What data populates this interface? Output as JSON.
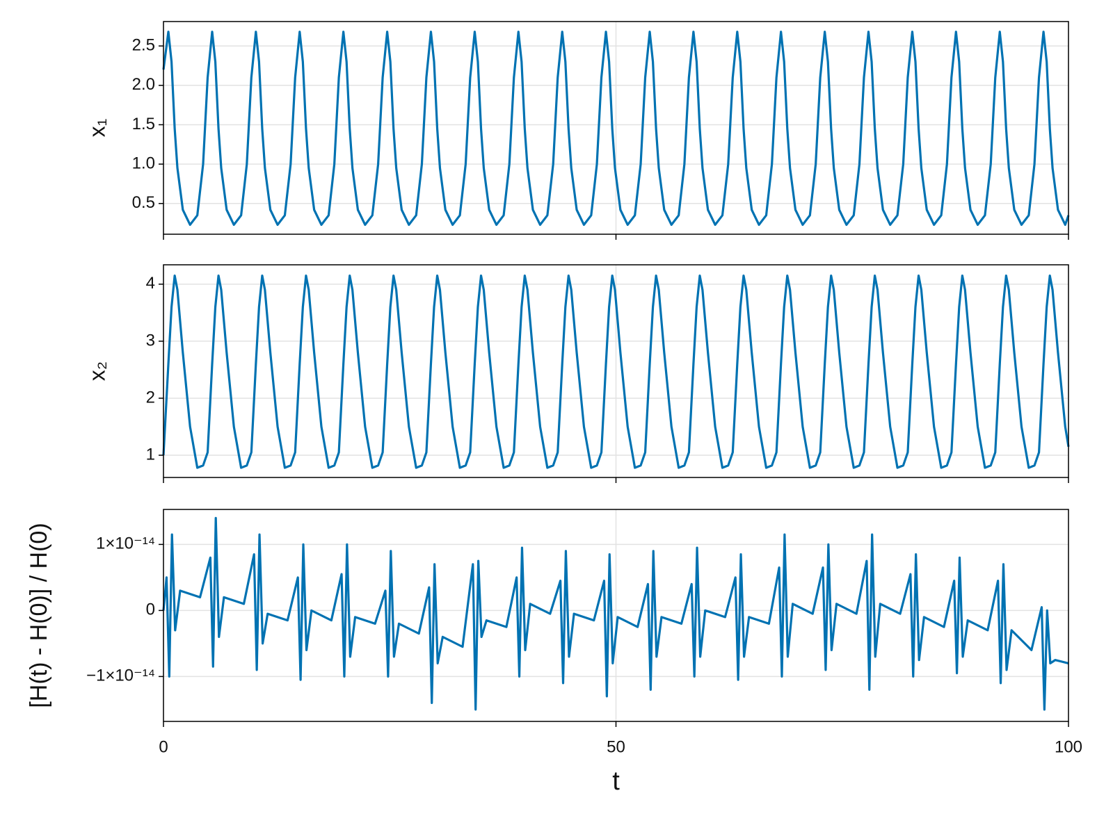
{
  "chart_data": [
    {
      "type": "line",
      "ylabel": "x₁",
      "color": "#0072b2",
      "grid": true,
      "xlim": [
        0,
        100
      ],
      "xticks": [
        0,
        50,
        100
      ],
      "ylim": [
        0.11,
        2.81
      ],
      "yticks": [
        0.5,
        {
          "value": 1,
          "label": "1.0"
        },
        1.5,
        {
          "value": 2,
          "label": "2.0"
        },
        2.5
      ],
      "x": [
        0,
        0.54,
        0.89,
        1.24,
        1.54,
        2.14,
        2.94,
        3.74,
        4.38,
        4.88,
        5.38,
        5.73,
        6.08,
        6.38,
        6.98,
        7.78,
        8.58,
        9.21,
        9.71,
        10.21,
        10.56,
        10.91,
        11.21,
        11.81,
        12.61,
        13.41,
        14.05,
        14.55,
        15.05,
        15.4,
        15.75,
        16.05,
        16.65,
        17.45,
        18.25,
        18.88,
        19.38,
        19.88,
        20.23,
        20.58,
        20.88,
        21.48,
        22.28,
        23.08,
        23.72,
        24.22,
        24.72,
        25.07,
        25.42,
        25.72,
        26.32,
        27.12,
        27.92,
        28.55,
        29.05,
        29.55,
        29.9,
        30.25,
        30.55,
        31.15,
        31.95,
        32.75,
        33.39,
        33.89,
        34.39,
        34.74,
        35.09,
        35.39,
        35.99,
        36.79,
        37.59,
        38.22,
        38.72,
        39.22,
        39.57,
        39.92,
        40.22,
        40.82,
        41.62,
        42.42,
        43.06,
        43.56,
        44.06,
        44.41,
        44.76,
        45.06,
        45.66,
        46.46,
        47.26,
        47.89,
        48.39,
        48.89,
        49.24,
        49.59,
        49.89,
        50.49,
        51.29,
        52.09,
        52.73,
        53.23,
        53.73,
        54.08,
        54.43,
        54.73,
        55.33,
        56.13,
        56.93,
        57.56,
        58.06,
        58.56,
        58.91,
        59.26,
        59.56,
        60.16,
        60.96,
        61.76,
        62.4,
        62.9,
        63.4,
        63.75,
        64.1,
        64.4,
        65,
        65.8,
        66.6,
        67.23,
        67.73,
        68.23,
        68.58,
        68.93,
        69.23,
        69.83,
        70.63,
        71.43,
        72.07,
        72.57,
        73.07,
        73.42,
        73.77,
        74.07,
        74.67,
        75.47,
        76.27,
        76.9,
        77.4,
        77.9,
        78.25,
        78.6,
        78.9,
        79.5,
        80.3,
        81.1,
        81.74,
        82.24,
        82.74,
        83.09,
        83.44,
        83.74,
        84.34,
        85.14,
        85.94,
        86.57,
        87.07,
        87.57,
        87.92,
        88.27,
        88.57,
        89.17,
        89.97,
        90.77,
        91.41,
        91.91,
        92.41,
        92.76,
        93.11,
        93.41,
        94.01,
        94.81,
        95.61,
        96.24,
        96.74,
        97.24,
        97.59,
        97.94,
        98.24,
        98.84,
        99.64,
        100
      ],
      "values": [
        2.2,
        2.68,
        2.3,
        1.45,
        0.95,
        0.42,
        0.23,
        0.35,
        1.0,
        2.1,
        2.68,
        2.3,
        1.45,
        0.95,
        0.42,
        0.23,
        0.35,
        1.0,
        2.1,
        2.68,
        2.3,
        1.45,
        0.95,
        0.42,
        0.23,
        0.35,
        1.0,
        2.1,
        2.68,
        2.3,
        1.45,
        0.95,
        0.42,
        0.23,
        0.35,
        1.0,
        2.1,
        2.68,
        2.3,
        1.45,
        0.95,
        0.42,
        0.23,
        0.35,
        1.0,
        2.1,
        2.68,
        2.3,
        1.45,
        0.95,
        0.42,
        0.23,
        0.35,
        1.0,
        2.1,
        2.68,
        2.3,
        1.45,
        0.95,
        0.42,
        0.23,
        0.35,
        1.0,
        2.1,
        2.68,
        2.3,
        1.45,
        0.95,
        0.42,
        0.23,
        0.35,
        1.0,
        2.1,
        2.68,
        2.3,
        1.45,
        0.95,
        0.42,
        0.23,
        0.35,
        1.0,
        2.1,
        2.68,
        2.3,
        1.45,
        0.95,
        0.42,
        0.23,
        0.35,
        1.0,
        2.1,
        2.68,
        2.3,
        1.45,
        0.95,
        0.42,
        0.23,
        0.35,
        1.0,
        2.1,
        2.68,
        2.3,
        1.45,
        0.95,
        0.42,
        0.23,
        0.35,
        1.0,
        2.1,
        2.68,
        2.3,
        1.45,
        0.95,
        0.42,
        0.23,
        0.35,
        1.0,
        2.1,
        2.68,
        2.3,
        1.45,
        0.95,
        0.42,
        0.23,
        0.35,
        1.0,
        2.1,
        2.68,
        2.3,
        1.45,
        0.95,
        0.42,
        0.23,
        0.35,
        1.0,
        2.1,
        2.68,
        2.3,
        1.45,
        0.95,
        0.42,
        0.23,
        0.35,
        1.0,
        2.1,
        2.68,
        2.3,
        1.45,
        0.95,
        0.42,
        0.23,
        0.35,
        1.0,
        2.1,
        2.68,
        2.3,
        1.45,
        0.95,
        0.42,
        0.23,
        0.35,
        1.0,
        2.1,
        2.68,
        2.3,
        1.45,
        0.95,
        0.42,
        0.23,
        0.35,
        1.0,
        2.1,
        2.68,
        2.3,
        1.45,
        0.95,
        0.42,
        0.23,
        0.35,
        1.0,
        2.1,
        2.68,
        2.3,
        1.45,
        0.95,
        0.42,
        0.23,
        0.35
      ]
    },
    {
      "type": "line",
      "ylabel": "x₂",
      "color": "#0072b2",
      "grid": true,
      "xlim": [
        0,
        100
      ],
      "xticks": [
        0,
        50,
        100
      ],
      "ylim": [
        0.61,
        4.34
      ],
      "yticks": [
        1,
        2,
        3,
        4
      ],
      "x": [
        0,
        0.54,
        0.89,
        1.24,
        1.54,
        2.14,
        2.94,
        3.74,
        4.38,
        4.88,
        5.38,
        5.73,
        6.08,
        6.38,
        6.98,
        7.78,
        8.58,
        9.21,
        9.71,
        10.21,
        10.56,
        10.91,
        11.21,
        11.81,
        12.61,
        13.41,
        14.05,
        14.55,
        15.05,
        15.4,
        15.75,
        16.05,
        16.65,
        17.45,
        18.25,
        18.88,
        19.38,
        19.88,
        20.23,
        20.58,
        20.88,
        21.48,
        22.28,
        23.08,
        23.72,
        24.22,
        24.72,
        25.07,
        25.42,
        25.72,
        26.32,
        27.12,
        27.92,
        28.55,
        29.05,
        29.55,
        29.9,
        30.25,
        30.55,
        31.15,
        31.95,
        32.75,
        33.39,
        33.89,
        34.39,
        34.74,
        35.09,
        35.39,
        35.99,
        36.79,
        37.59,
        38.22,
        38.72,
        39.22,
        39.57,
        39.92,
        40.22,
        40.82,
        41.62,
        42.42,
        43.06,
        43.56,
        44.06,
        44.41,
        44.76,
        45.06,
        45.66,
        46.46,
        47.26,
        47.89,
        48.39,
        48.89,
        49.24,
        49.59,
        49.89,
        50.49,
        51.29,
        52.09,
        52.73,
        53.23,
        53.73,
        54.08,
        54.43,
        54.73,
        55.33,
        56.13,
        56.93,
        57.56,
        58.06,
        58.56,
        58.91,
        59.26,
        59.56,
        60.16,
        60.96,
        61.76,
        62.4,
        62.9,
        63.4,
        63.75,
        64.1,
        64.4,
        65,
        65.8,
        66.6,
        67.23,
        67.73,
        68.23,
        68.58,
        68.93,
        69.23,
        69.83,
        70.63,
        71.43,
        72.07,
        72.57,
        73.07,
        73.42,
        73.77,
        74.07,
        74.67,
        75.47,
        76.27,
        76.9,
        77.4,
        77.9,
        78.25,
        78.6,
        78.9,
        79.5,
        80.3,
        81.1,
        81.74,
        82.24,
        82.74,
        83.09,
        83.44,
        83.74,
        84.34,
        85.14,
        85.94,
        86.57,
        87.07,
        87.57,
        87.92,
        88.27,
        88.57,
        89.17,
        89.97,
        90.77,
        91.41,
        91.91,
        92.41,
        92.76,
        93.11,
        93.41,
        94.01,
        94.81,
        95.61,
        96.24,
        96.74,
        97.24,
        97.59,
        97.94,
        98.24,
        98.84,
        99.64,
        100
      ],
      "values": [
        1.0,
        2.6,
        3.6,
        4.15,
        3.9,
        2.8,
        1.5,
        0.78,
        0.82,
        1.05,
        2.6,
        3.6,
        4.15,
        3.9,
        2.8,
        1.5,
        0.78,
        0.82,
        1.05,
        2.6,
        3.6,
        4.15,
        3.9,
        2.8,
        1.5,
        0.78,
        0.82,
        1.05,
        2.6,
        3.6,
        4.15,
        3.9,
        2.8,
        1.5,
        0.78,
        0.82,
        1.05,
        2.6,
        3.6,
        4.15,
        3.9,
        2.8,
        1.5,
        0.78,
        0.82,
        1.05,
        2.6,
        3.6,
        4.15,
        3.9,
        2.8,
        1.5,
        0.78,
        0.82,
        1.05,
        2.6,
        3.6,
        4.15,
        3.9,
        2.8,
        1.5,
        0.78,
        0.82,
        1.05,
        2.6,
        3.6,
        4.15,
        3.9,
        2.8,
        1.5,
        0.78,
        0.82,
        1.05,
        2.6,
        3.6,
        4.15,
        3.9,
        2.8,
        1.5,
        0.78,
        0.82,
        1.05,
        2.6,
        3.6,
        4.15,
        3.9,
        2.8,
        1.5,
        0.78,
        0.82,
        1.05,
        2.6,
        3.6,
        4.15,
        3.9,
        2.8,
        1.5,
        0.78,
        0.82,
        1.05,
        2.6,
        3.6,
        4.15,
        3.9,
        2.8,
        1.5,
        0.78,
        0.82,
        1.05,
        2.6,
        3.6,
        4.15,
        3.9,
        2.8,
        1.5,
        0.78,
        0.82,
        1.05,
        2.6,
        3.6,
        4.15,
        3.9,
        2.8,
        1.5,
        0.78,
        0.82,
        1.05,
        2.6,
        3.6,
        4.15,
        3.9,
        2.8,
        1.5,
        0.78,
        0.82,
        1.05,
        2.6,
        3.6,
        4.15,
        3.9,
        2.8,
        1.5,
        0.78,
        0.82,
        1.05,
        2.6,
        3.6,
        4.15,
        3.9,
        2.8,
        1.5,
        0.78,
        0.82,
        1.05,
        2.6,
        3.6,
        4.15,
        3.9,
        2.8,
        1.5,
        0.78,
        0.82,
        1.05,
        2.6,
        3.6,
        4.15,
        3.9,
        2.8,
        1.5,
        0.78,
        0.82,
        1.05,
        2.6,
        3.6,
        4.15,
        3.9,
        2.8,
        1.5,
        0.78,
        0.82,
        1.05,
        2.6,
        3.6,
        4.15,
        3.9,
        2.8,
        1.5,
        1.15
      ]
    },
    {
      "type": "line",
      "ylabel": "[H(t) - H(0)] / H(0)",
      "xlabel": "t",
      "color": "#0072b2",
      "grid": true,
      "xlim": [
        0,
        100
      ],
      "xticks": [
        0,
        50,
        100
      ],
      "ylim": [
        -1.68e-14,
        1.53e-14
      ],
      "yticks": [
        {
          "value": -1e-14,
          "label": "−1×10⁻¹⁴"
        },
        0,
        {
          "value": 1e-14,
          "label": "1×10⁻¹⁴"
        }
      ],
      "x": [
        0,
        0.34,
        0.64,
        0.94,
        1.29,
        1.84,
        4.04,
        5.18,
        5.48,
        5.78,
        6.13,
        6.68,
        8.88,
        10.01,
        10.31,
        10.61,
        10.96,
        11.51,
        13.71,
        14.85,
        15.15,
        15.45,
        15.8,
        16.35,
        18.55,
        19.68,
        19.98,
        20.28,
        20.63,
        21.18,
        23.38,
        24.52,
        24.82,
        25.12,
        25.47,
        26.02,
        28.22,
        29.35,
        29.65,
        29.95,
        30.3,
        30.85,
        33.05,
        34.19,
        34.49,
        34.79,
        35.14,
        35.69,
        37.89,
        39.02,
        39.32,
        39.62,
        39.97,
        40.52,
        42.72,
        43.86,
        44.16,
        44.46,
        44.81,
        45.36,
        47.56,
        48.69,
        48.99,
        49.29,
        49.64,
        50.19,
        52.39,
        53.53,
        53.83,
        54.13,
        54.48,
        55.03,
        57.23,
        58.36,
        58.66,
        58.96,
        59.31,
        59.86,
        62.06,
        63.2,
        63.5,
        63.8,
        64.15,
        64.7,
        66.9,
        68.03,
        68.33,
        68.63,
        68.98,
        69.53,
        71.73,
        72.87,
        73.17,
        73.47,
        73.82,
        74.37,
        76.57,
        77.7,
        78,
        78.3,
        78.65,
        79.2,
        81.4,
        82.54,
        82.84,
        83.14,
        83.49,
        84.04,
        86.24,
        87.37,
        87.67,
        87.97,
        88.32,
        88.87,
        91.07,
        92.21,
        92.51,
        92.81,
        93.16,
        93.71,
        95.91,
        97.04,
        97.34,
        97.64,
        97.99,
        98.54,
        100
      ],
      "values": [
        0,
        5e-15,
        -1e-14,
        1.15e-14,
        -3e-15,
        3e-15,
        2e-15,
        8e-15,
        -8.5e-15,
        1.4e-14,
        -4e-15,
        2e-15,
        1e-15,
        8.5e-15,
        -9e-15,
        1.15e-14,
        -5e-15,
        -5e-16,
        -1.5e-15,
        5e-15,
        -1.05e-14,
        1e-14,
        -6e-15,
        0,
        -1.5e-15,
        5.5e-15,
        -1e-14,
        1e-14,
        -7e-15,
        -1e-15,
        -2e-15,
        3e-15,
        -1e-14,
        9e-15,
        -7e-15,
        -2e-15,
        -3.5e-15,
        3.5e-15,
        -1.4e-14,
        7e-15,
        -8e-15,
        -4e-15,
        -5.5e-15,
        7e-15,
        -1.5e-14,
        7.5e-15,
        -4e-15,
        -1.5e-15,
        -2.5e-15,
        5e-15,
        -1e-14,
        9.5e-15,
        -6e-15,
        1e-15,
        -5e-16,
        4.5e-15,
        -1.1e-14,
        9e-15,
        -7e-15,
        -5e-16,
        -1.5e-15,
        4.5e-15,
        -1.3e-14,
        8.5e-15,
        -8e-15,
        -1e-15,
        -2.5e-15,
        4e-15,
        -1.2e-14,
        9e-15,
        -7e-15,
        -1e-15,
        -2e-15,
        4e-15,
        -1e-14,
        9.5e-15,
        -7e-15,
        0,
        -1e-15,
        5e-15,
        -1.05e-14,
        8.5e-15,
        -7e-15,
        -1e-15,
        -2e-15,
        6.5e-15,
        -1e-14,
        1.15e-14,
        -7e-15,
        1e-15,
        -5e-16,
        6.5e-15,
        -9e-15,
        1e-14,
        -6e-15,
        1e-15,
        -5e-16,
        7.5e-15,
        -1.2e-14,
        1.15e-14,
        -7e-15,
        1e-15,
        -5e-16,
        5.5e-15,
        -1e-14,
        8.5e-15,
        -7.5e-15,
        -1e-15,
        -2.5e-15,
        4.5e-15,
        -9.5e-15,
        8e-15,
        -7e-15,
        -1.5e-15,
        -3e-15,
        4.5e-15,
        -1.1e-14,
        7e-15,
        -9e-15,
        -3e-15,
        -6e-15,
        5e-16,
        -1.5e-14,
        0,
        -8e-15,
        -7.5e-15,
        -8e-15
      ]
    }
  ]
}
